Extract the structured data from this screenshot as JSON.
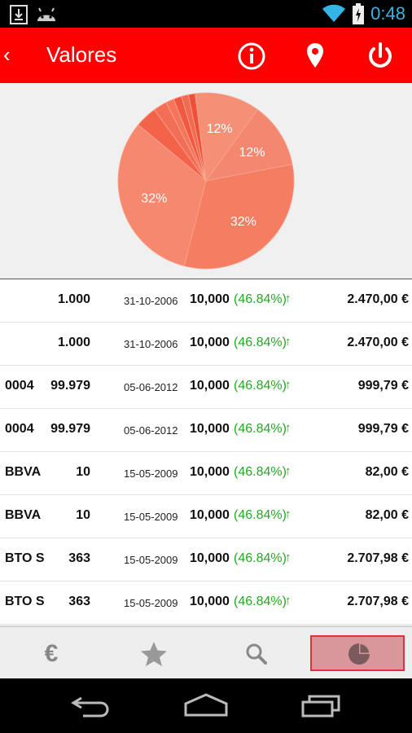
{
  "status_bar": {
    "time": "0:48",
    "icons": [
      "download-icon",
      "android-icon",
      "wifi-icon",
      "battery-charging-icon"
    ]
  },
  "action_bar": {
    "back_glyph": "‹",
    "title": "Valores",
    "actions": [
      "info-icon",
      "location-pin-icon",
      "power-icon"
    ],
    "color": "#ff0000"
  },
  "pie_chart": {
    "chart_data": {
      "type": "pie",
      "slices": [
        {
          "value": 12,
          "label": "12%",
          "color": "#f58f75"
        },
        {
          "value": 12,
          "label": "12%",
          "color": "#f48770"
        },
        {
          "value": 32,
          "label": "32%",
          "color": "#f47d62"
        },
        {
          "value": 32,
          "label": "32%",
          "color": "#f6886f"
        },
        {
          "value": 4,
          "label": "",
          "color": "#f2634a"
        },
        {
          "value": 2.5,
          "label": "",
          "color": "#f26e56"
        },
        {
          "value": 1.5,
          "label": "",
          "color": "#f4755c"
        },
        {
          "value": 1.5,
          "label": "",
          "color": "#f05841"
        },
        {
          "value": 1.3,
          "label": "",
          "color": "#f26a50"
        },
        {
          "value": 1.2,
          "label": "",
          "color": "#ef4f38"
        }
      ]
    }
  },
  "rows": [
    {
      "name": "",
      "qty": "1.000",
      "date": "31-10-2006",
      "price": "10,000",
      "pct": "(46.84%)",
      "total": "2.470,00 €"
    },
    {
      "name": "",
      "qty": "1.000",
      "date": "31-10-2006",
      "price": "10,000",
      "pct": "(46.84%)",
      "total": "2.470,00 €"
    },
    {
      "name": "0004",
      "qty": "99.979",
      "date": "05-06-2012",
      "price": "10,000",
      "pct": "(46.84%)",
      "total": "999,79 €"
    },
    {
      "name": "0004",
      "qty": "99.979",
      "date": "05-06-2012",
      "price": "10,000",
      "pct": "(46.84%)",
      "total": "999,79 €"
    },
    {
      "name": "BBVA",
      "qty": "10",
      "date": "15-05-2009",
      "price": "10,000",
      "pct": "(46.84%)",
      "total": "82,00 €"
    },
    {
      "name": "BBVA",
      "qty": "10",
      "date": "15-05-2009",
      "price": "10,000",
      "pct": "(46.84%)",
      "total": "82,00 €"
    },
    {
      "name": "BTO S",
      "qty": "363",
      "date": "15-05-2009",
      "price": "10,000",
      "pct": "(46.84%)",
      "total": "2.707,98 €"
    },
    {
      "name": "BTO S",
      "qty": "363",
      "date": "15-05-2009",
      "price": "10,000",
      "pct": "(46.84%)",
      "total": "2.707,98 €"
    }
  ],
  "trend_arrow": "↑",
  "tabs": [
    {
      "icon": "euro-icon",
      "glyph": "€"
    },
    {
      "icon": "star-icon"
    },
    {
      "icon": "search-icon"
    },
    {
      "icon": "pie-chart-icon",
      "active": true
    }
  ],
  "nav_bar": [
    "back-nav-icon",
    "home-nav-icon",
    "recent-apps-icon"
  ]
}
